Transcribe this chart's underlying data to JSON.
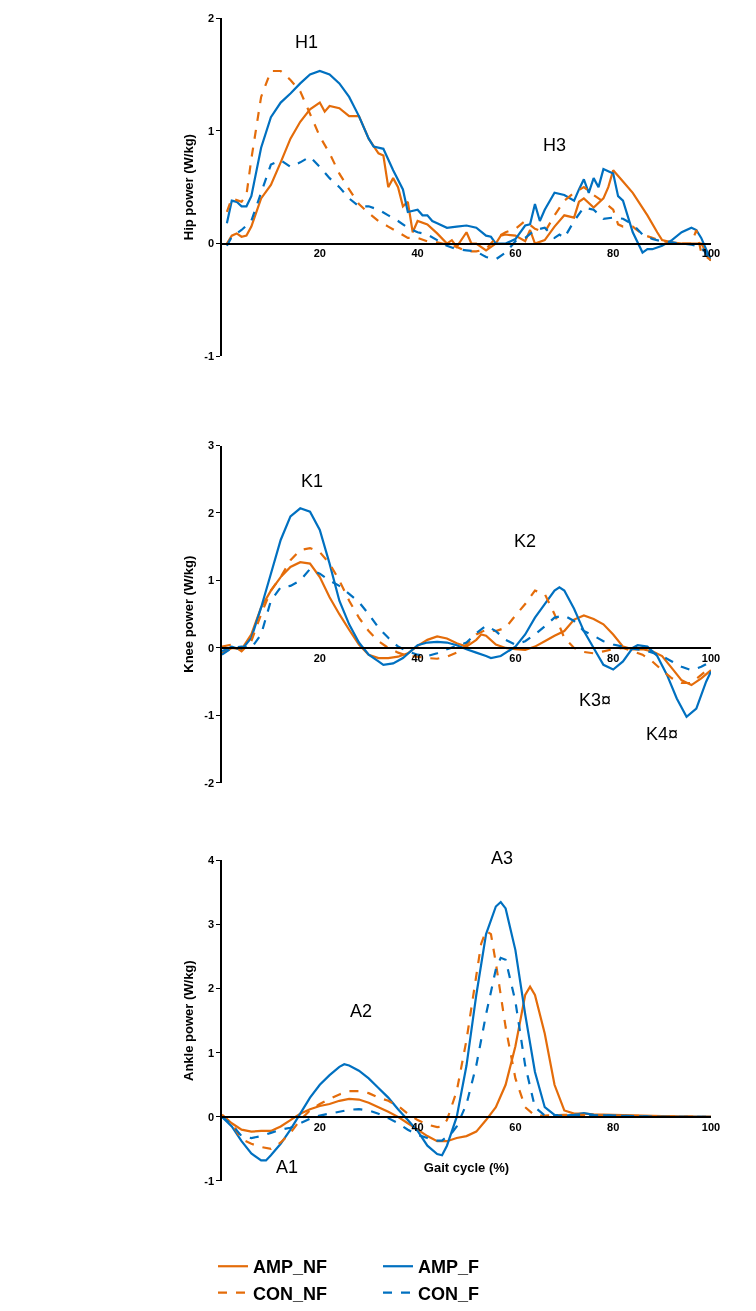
{
  "chart_data": [
    {
      "type": "line",
      "ylabel": "Hip power (W/kg)",
      "xlim": [
        0,
        100
      ],
      "xticks": [
        20,
        40,
        60,
        80,
        100
      ],
      "ylim": [
        -1,
        2
      ],
      "yticks": [
        -1,
        0,
        1,
        2
      ],
      "annotations": [
        "H1",
        "H3"
      ],
      "series": [
        {
          "color": "#e46c0a",
          "line_style": "solid",
          "x": [
            1,
            2,
            3,
            4,
            5,
            6,
            8,
            10,
            12,
            14,
            16,
            18,
            20,
            21,
            22,
            24,
            26,
            28,
            30,
            32,
            33,
            34,
            35,
            36,
            37,
            38,
            39,
            40,
            42,
            44,
            46,
            47,
            48,
            50,
            51,
            52,
            54,
            56,
            57,
            58,
            60,
            62,
            63,
            64,
            66,
            68,
            70,
            72,
            73,
            74,
            76,
            78,
            79,
            80,
            82,
            84,
            87,
            89,
            90,
            92,
            94,
            96,
            98,
            100
          ],
          "values": [
            0.0,
            0.07,
            0.09,
            0.06,
            0.07,
            0.15,
            0.4,
            0.52,
            0.72,
            0.93,
            1.08,
            1.19,
            1.25,
            1.17,
            1.22,
            1.2,
            1.13,
            1.13,
            0.93,
            0.8,
            0.78,
            0.5,
            0.58,
            0.5,
            0.33,
            0.37,
            0.1,
            0.2,
            0.17,
            0.09,
            0.0,
            0.03,
            -0.03,
            0.1,
            0.0,
            0.0,
            -0.06,
            0.0,
            0.07,
            0.08,
            0.07,
            0.02,
            0.12,
            0.0,
            0.03,
            0.15,
            0.25,
            0.23,
            0.37,
            0.4,
            0.32,
            0.4,
            0.5,
            0.65,
            0.55,
            0.45,
            0.25,
            0.1,
            0.03,
            0.01,
            0.0,
            0.0,
            0.0,
            -0.15
          ]
        },
        {
          "color": "#0070c0",
          "line_style": "solid",
          "x": [
            1,
            2,
            3,
            4,
            5,
            6,
            8,
            10,
            12,
            14,
            16,
            18,
            20,
            22,
            24,
            26,
            28,
            30,
            31,
            33,
            35,
            37,
            38,
            40,
            41,
            42,
            43,
            44,
            46,
            48,
            50,
            52,
            54,
            55,
            56,
            58,
            60,
            62,
            63,
            64,
            65,
            66,
            68,
            70,
            72,
            73,
            74,
            75,
            76,
            77,
            78,
            80,
            81,
            82,
            84,
            86,
            87,
            88,
            90,
            92,
            94,
            96,
            97,
            98,
            100
          ],
          "values": [
            0.18,
            0.38,
            0.37,
            0.33,
            0.33,
            0.42,
            0.85,
            1.12,
            1.25,
            1.33,
            1.42,
            1.5,
            1.53,
            1.5,
            1.42,
            1.3,
            1.13,
            0.93,
            0.86,
            0.84,
            0.65,
            0.48,
            0.28,
            0.3,
            0.25,
            0.25,
            0.2,
            0.18,
            0.14,
            0.15,
            0.16,
            0.14,
            0.07,
            0.06,
            0.0,
            0.0,
            0.04,
            0.16,
            0.17,
            0.35,
            0.2,
            0.3,
            0.45,
            0.43,
            0.38,
            0.48,
            0.57,
            0.45,
            0.58,
            0.5,
            0.66,
            0.62,
            0.42,
            0.38,
            0.1,
            -0.08,
            -0.05,
            -0.05,
            -0.02,
            0.03,
            0.1,
            0.14,
            0.12,
            0.05,
            -0.15
          ]
        },
        {
          "color": "#e46c0a",
          "line_style": "dashed",
          "x": [
            1,
            2,
            4,
            5,
            6,
            8,
            10,
            12,
            14,
            16,
            18,
            20,
            22,
            24,
            26,
            28,
            30,
            32,
            34,
            36,
            38,
            40,
            42,
            44,
            46,
            48,
            50,
            52,
            54,
            56,
            58,
            60,
            62,
            64,
            66,
            68,
            70,
            72,
            74,
            76,
            78,
            80,
            81,
            82,
            84,
            86,
            88,
            90,
            94,
            96,
            97,
            98,
            100
          ],
          "values": [
            0.28,
            0.4,
            0.37,
            0.43,
            0.75,
            1.3,
            1.53,
            1.53,
            1.45,
            1.35,
            1.15,
            0.95,
            0.8,
            0.62,
            0.48,
            0.35,
            0.27,
            0.2,
            0.15,
            0.1,
            0.05,
            0.05,
            0.02,
            0.01,
            -0.01,
            -0.03,
            -0.07,
            -0.07,
            -0.05,
            0.05,
            0.1,
            0.13,
            0.2,
            0.13,
            0.1,
            0.25,
            0.38,
            0.45,
            0.5,
            0.43,
            0.37,
            0.3,
            0.17,
            0.15,
            0.15,
            0.08,
            0.05,
            0.02,
            0.0,
            0.0,
            0.12,
            -0.08,
            -0.15
          ]
        },
        {
          "color": "#0070c0",
          "line_style": "dashed",
          "x": [
            1,
            2,
            4,
            6,
            8,
            10,
            12,
            14,
            16,
            18,
            20,
            22,
            24,
            26,
            28,
            30,
            32,
            34,
            36,
            38,
            40,
            42,
            44,
            46,
            48,
            50,
            52,
            54,
            56,
            58,
            60,
            62,
            64,
            66,
            68,
            69,
            70,
            72,
            74,
            76,
            78,
            80,
            82,
            84,
            86,
            88,
            90,
            92,
            94,
            96,
            98,
            100
          ],
          "values": [
            -0.02,
            0.06,
            0.12,
            0.2,
            0.45,
            0.7,
            0.74,
            0.68,
            0.72,
            0.77,
            0.68,
            0.58,
            0.5,
            0.4,
            0.33,
            0.33,
            0.3,
            0.25,
            0.2,
            0.14,
            0.1,
            0.08,
            0.03,
            -0.02,
            -0.05,
            -0.06,
            -0.07,
            -0.12,
            -0.14,
            -0.08,
            0.02,
            0.05,
            0.12,
            0.14,
            0.05,
            0.08,
            0.05,
            0.2,
            0.32,
            0.3,
            0.22,
            0.23,
            0.22,
            0.17,
            0.08,
            0.04,
            0.02,
            0.01,
            0.0,
            -0.01,
            -0.03,
            -0.15
          ]
        }
      ]
    },
    {
      "type": "line",
      "ylabel": "Knee power (W/kg)",
      "xlim": [
        0,
        100
      ],
      "xticks": [
        20,
        40,
        60,
        80,
        100
      ],
      "ylim": [
        -2,
        3
      ],
      "yticks": [
        -2,
        -1,
        0,
        1,
        2,
        3
      ],
      "annotations": [
        "K1",
        "K2",
        "K3¤",
        "K4¤"
      ],
      "series": [
        {
          "color": "#e46c0a",
          "line_style": "solid",
          "x": [
            0,
            2,
            4,
            6,
            8,
            10,
            12,
            14,
            16,
            18,
            20,
            22,
            24,
            26,
            28,
            30,
            32,
            34,
            36,
            38,
            40,
            42,
            44,
            46,
            48,
            50,
            52,
            53,
            54,
            56,
            58,
            60,
            62,
            64,
            66,
            68,
            70,
            72,
            74,
            76,
            78,
            80,
            82,
            84,
            86,
            88,
            90,
            92,
            94,
            96,
            98,
            100
          ],
          "values": [
            -0.08,
            0.0,
            -0.02,
            0.2,
            0.6,
            0.85,
            1.05,
            1.2,
            1.27,
            1.25,
            1.05,
            0.75,
            0.5,
            0.27,
            0.05,
            -0.1,
            -0.15,
            -0.15,
            -0.13,
            -0.08,
            0.03,
            0.12,
            0.17,
            0.14,
            0.07,
            0.02,
            0.12,
            0.2,
            0.18,
            0.05,
            0.0,
            -0.02,
            -0.03,
            0.02,
            0.1,
            0.18,
            0.25,
            0.42,
            0.48,
            0.43,
            0.35,
            0.2,
            0.02,
            -0.02,
            -0.02,
            -0.05,
            -0.12,
            -0.3,
            -0.48,
            -0.55,
            -0.45,
            -0.33
          ]
        },
        {
          "color": "#0070c0",
          "line_style": "solid",
          "x": [
            0,
            2,
            4,
            6,
            8,
            10,
            12,
            14,
            16,
            18,
            20,
            22,
            24,
            26,
            28,
            30,
            32,
            33,
            35,
            37,
            40,
            42,
            44,
            46,
            48,
            50,
            52,
            54,
            55,
            57,
            60,
            62,
            64,
            66,
            68,
            69,
            70,
            72,
            74,
            76,
            78,
            80,
            82,
            84,
            85,
            87,
            89,
            91,
            93,
            95,
            97,
            99,
            100
          ],
          "values": [
            -0.05,
            0.02,
            -0.03,
            0.15,
            0.6,
            1.1,
            1.6,
            1.95,
            2.07,
            2.02,
            1.75,
            1.25,
            0.7,
            0.35,
            0.08,
            -0.1,
            -0.2,
            -0.25,
            -0.23,
            -0.15,
            0.04,
            0.08,
            0.09,
            0.08,
            0.04,
            -0.02,
            -0.07,
            -0.12,
            -0.15,
            -0.12,
            0.02,
            0.2,
            0.45,
            0.65,
            0.85,
            0.9,
            0.85,
            0.58,
            0.25,
            0.0,
            -0.25,
            -0.32,
            -0.2,
            0.0,
            0.04,
            0.02,
            -0.12,
            -0.4,
            -0.75,
            -1.02,
            -0.9,
            -0.5,
            -0.35
          ]
        },
        {
          "color": "#e46c0a",
          "line_style": "dashed",
          "x": [
            0,
            2,
            4,
            6,
            8,
            10,
            12,
            14,
            16,
            18,
            20,
            22,
            24,
            26,
            28,
            30,
            32,
            34,
            36,
            38,
            40,
            42,
            44,
            46,
            48,
            50,
            52,
            54,
            56,
            58,
            60,
            62,
            64,
            66,
            68,
            70,
            72,
            74,
            76,
            78,
            80,
            82,
            84,
            86,
            88,
            90,
            92,
            94,
            96,
            98,
            100
          ],
          "values": [
            0.02,
            0.05,
            -0.05,
            0.1,
            0.5,
            0.85,
            1.05,
            1.3,
            1.45,
            1.48,
            1.42,
            1.25,
            1.0,
            0.7,
            0.45,
            0.25,
            0.1,
            0.0,
            -0.07,
            -0.12,
            -0.13,
            -0.15,
            -0.16,
            -0.13,
            -0.07,
            0.05,
            0.2,
            0.27,
            0.25,
            0.3,
            0.48,
            0.65,
            0.85,
            0.8,
            0.5,
            0.15,
            0.0,
            -0.06,
            -0.08,
            -0.05,
            -0.02,
            0.0,
            -0.05,
            -0.1,
            -0.2,
            -0.33,
            -0.45,
            -0.52,
            -0.52,
            -0.4,
            -0.28
          ]
        },
        {
          "color": "#0070c0",
          "line_style": "dashed",
          "x": [
            0,
            2,
            4,
            6,
            8,
            10,
            12,
            14,
            16,
            18,
            20,
            22,
            24,
            26,
            28,
            30,
            32,
            34,
            36,
            38,
            40,
            42,
            44,
            46,
            48,
            50,
            52,
            54,
            56,
            58,
            60,
            62,
            64,
            66,
            68,
            70,
            72,
            74,
            76,
            78,
            80,
            82,
            84,
            86,
            88,
            90,
            92,
            94,
            96,
            98,
            100
          ],
          "values": [
            -0.1,
            0.0,
            0.02,
            0.0,
            0.2,
            0.7,
            0.9,
            0.92,
            1.0,
            1.17,
            1.1,
            1.0,
            0.92,
            0.8,
            0.68,
            0.5,
            0.3,
            0.15,
            0.02,
            -0.05,
            -0.1,
            -0.12,
            -0.08,
            -0.02,
            0.03,
            0.08,
            0.22,
            0.33,
            0.25,
            0.12,
            0.05,
            0.1,
            0.2,
            0.32,
            0.45,
            0.48,
            0.4,
            0.25,
            0.18,
            0.1,
            0.05,
            0.02,
            -0.01,
            -0.03,
            -0.07,
            -0.12,
            -0.2,
            -0.28,
            -0.33,
            -0.28,
            -0.2
          ]
        }
      ]
    },
    {
      "type": "line",
      "xlabel": "Gait cycle (%)",
      "ylabel": "Ankle power (W/kg)",
      "xlim": [
        0,
        100
      ],
      "xticks": [
        20,
        40,
        60,
        80,
        100
      ],
      "ylim": [
        -1,
        4
      ],
      "yticks": [
        -1,
        0,
        1,
        2,
        3,
        4
      ],
      "legend": "bottom",
      "annotations": [
        "A1",
        "A2",
        "A3"
      ],
      "series": [
        {
          "name": "AMP_NF",
          "color": "#e46c0a",
          "line_style": "solid",
          "x": [
            0,
            2,
            4,
            6,
            8,
            10,
            12,
            14,
            16,
            18,
            20,
            22,
            24,
            26,
            28,
            30,
            32,
            34,
            36,
            38,
            40,
            42,
            44,
            46,
            48,
            50,
            52,
            54,
            56,
            58,
            60,
            62,
            63,
            64,
            66,
            68,
            70,
            72,
            74,
            76,
            80,
            90,
            100
          ],
          "values": [
            0.03,
            -0.1,
            -0.2,
            -0.23,
            -0.22,
            -0.22,
            -0.15,
            -0.05,
            0.05,
            0.12,
            0.17,
            0.2,
            0.25,
            0.28,
            0.27,
            0.22,
            0.15,
            0.08,
            0.0,
            -0.1,
            -0.2,
            -0.3,
            -0.38,
            -0.38,
            -0.33,
            -0.3,
            -0.23,
            -0.05,
            0.15,
            0.5,
            1.1,
            1.9,
            2.03,
            1.9,
            1.3,
            0.5,
            0.1,
            0.05,
            0.05,
            0.04,
            0.03,
            0.01,
            0.0
          ]
        },
        {
          "name": "AMP_F",
          "color": "#0070c0",
          "line_style": "solid",
          "x": [
            0,
            2,
            4,
            6,
            8,
            9,
            10,
            12,
            14,
            16,
            18,
            20,
            22,
            24,
            25,
            26,
            28,
            30,
            32,
            34,
            36,
            38,
            40,
            42,
            44,
            45,
            46,
            48,
            50,
            52,
            54,
            56,
            57,
            58,
            60,
            62,
            64,
            66,
            68,
            70,
            72,
            74,
            76,
            80,
            90,
            100
          ],
          "values": [
            0.0,
            -0.15,
            -0.38,
            -0.57,
            -0.68,
            -0.68,
            -0.6,
            -0.42,
            -0.2,
            0.05,
            0.3,
            0.5,
            0.65,
            0.78,
            0.82,
            0.8,
            0.72,
            0.6,
            0.45,
            0.3,
            0.12,
            -0.05,
            -0.22,
            -0.45,
            -0.58,
            -0.6,
            -0.45,
            0.0,
            0.8,
            1.9,
            2.85,
            3.28,
            3.35,
            3.25,
            2.6,
            1.6,
            0.7,
            0.15,
            0.03,
            0.02,
            0.03,
            0.06,
            0.03,
            0.02,
            0.0,
            0.0
          ]
        },
        {
          "name": "CON_NF",
          "color": "#e46c0a",
          "line_style": "dashed",
          "x": [
            0,
            2,
            4,
            6,
            8,
            10,
            12,
            14,
            16,
            18,
            20,
            22,
            24,
            26,
            28,
            30,
            32,
            34,
            36,
            38,
            40,
            42,
            44,
            45,
            46,
            48,
            50,
            52,
            53,
            54,
            55,
            56,
            58,
            60,
            62,
            64,
            66,
            70,
            74,
            80,
            90,
            100
          ],
          "values": [
            0.03,
            -0.1,
            -0.35,
            -0.42,
            -0.47,
            -0.5,
            -0.4,
            -0.25,
            -0.05,
            0.1,
            0.2,
            0.28,
            0.35,
            0.4,
            0.4,
            0.37,
            0.3,
            0.25,
            0.17,
            0.05,
            -0.05,
            -0.12,
            -0.16,
            -0.15,
            -0.05,
            0.4,
            1.2,
            2.2,
            2.7,
            2.9,
            2.85,
            2.4,
            1.4,
            0.6,
            0.15,
            0.02,
            0.02,
            0.03,
            0.03,
            0.02,
            0.01,
            0.0
          ]
        },
        {
          "name": "CON_F",
          "color": "#0070c0",
          "line_style": "dashed",
          "x": [
            0,
            2,
            4,
            6,
            8,
            10,
            12,
            14,
            16,
            18,
            20,
            22,
            24,
            26,
            28,
            30,
            32,
            34,
            36,
            38,
            40,
            42,
            44,
            45,
            47,
            48,
            50,
            52,
            54,
            56,
            57,
            58,
            60,
            62,
            64,
            66,
            70,
            74,
            80,
            90,
            100
          ],
          "values": [
            0.0,
            -0.12,
            -0.3,
            -0.33,
            -0.3,
            -0.25,
            -0.2,
            -0.17,
            -0.1,
            -0.03,
            0.02,
            0.05,
            0.08,
            0.11,
            0.12,
            0.1,
            0.05,
            -0.02,
            -0.1,
            -0.2,
            -0.28,
            -0.33,
            -0.37,
            -0.37,
            -0.25,
            -0.15,
            0.2,
            0.8,
            1.6,
            2.3,
            2.48,
            2.45,
            1.8,
            0.8,
            0.15,
            0.02,
            0.02,
            0.03,
            0.02,
            0.0,
            0.0
          ]
        }
      ]
    }
  ]
}
